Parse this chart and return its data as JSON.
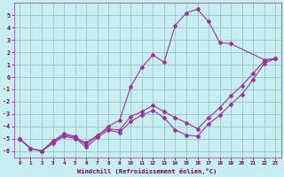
{
  "xlabel": "Windchill (Refroidissement éolien,°C)",
  "background_color": "#c8eef0",
  "grid_color": "#a0c8cc",
  "line_color": "#993399",
  "xlim": [
    -0.5,
    23.5
  ],
  "ylim": [
    -6.5,
    6.0
  ],
  "xticks": [
    0,
    1,
    2,
    3,
    4,
    5,
    6,
    7,
    8,
    9,
    10,
    11,
    12,
    13,
    14,
    15,
    16,
    17,
    18,
    19,
    20,
    21,
    22,
    23
  ],
  "yticks": [
    -6,
    -5,
    -4,
    -3,
    -2,
    -1,
    0,
    1,
    2,
    3,
    4,
    5
  ],
  "line1_x": [
    0,
    1,
    2,
    3,
    4,
    5,
    6,
    7,
    8,
    9,
    10,
    11,
    12,
    13,
    14,
    15,
    16,
    17,
    18,
    19,
    22,
    23
  ],
  "line1_y": [
    -5.0,
    -5.8,
    -6.0,
    -5.4,
    -4.8,
    -5.0,
    -5.3,
    -4.8,
    -4.0,
    -3.5,
    -0.8,
    0.8,
    1.8,
    1.2,
    4.2,
    5.2,
    5.5,
    4.5,
    2.8,
    2.7,
    1.4,
    1.5
  ],
  "line2_x": [
    0,
    1,
    2,
    3,
    4,
    5,
    6,
    7,
    8,
    9,
    10,
    11,
    12,
    13,
    14,
    15,
    16,
    17,
    18,
    19,
    20,
    21,
    22,
    23
  ],
  "line2_y": [
    -5.0,
    -5.8,
    -6.0,
    -5.2,
    -4.6,
    -4.8,
    -5.5,
    -4.7,
    -4.2,
    -4.3,
    -3.2,
    -2.8,
    -2.3,
    -2.8,
    -3.3,
    -3.7,
    -4.2,
    -3.3,
    -2.5,
    -1.5,
    -0.7,
    0.3,
    1.3,
    1.5
  ],
  "line3_x": [
    0,
    1,
    2,
    3,
    4,
    5,
    6,
    7,
    8,
    9,
    10,
    11,
    12,
    13,
    14,
    15,
    16,
    17,
    18,
    19,
    20,
    21,
    22,
    23
  ],
  "line3_y": [
    -5.0,
    -5.8,
    -6.0,
    -5.3,
    -4.7,
    -4.9,
    -5.7,
    -4.9,
    -4.3,
    -4.5,
    -3.6,
    -3.1,
    -2.7,
    -3.3,
    -4.3,
    -4.7,
    -4.8,
    -3.8,
    -3.1,
    -2.2,
    -1.4,
    -0.2,
    1.1,
    1.5
  ]
}
